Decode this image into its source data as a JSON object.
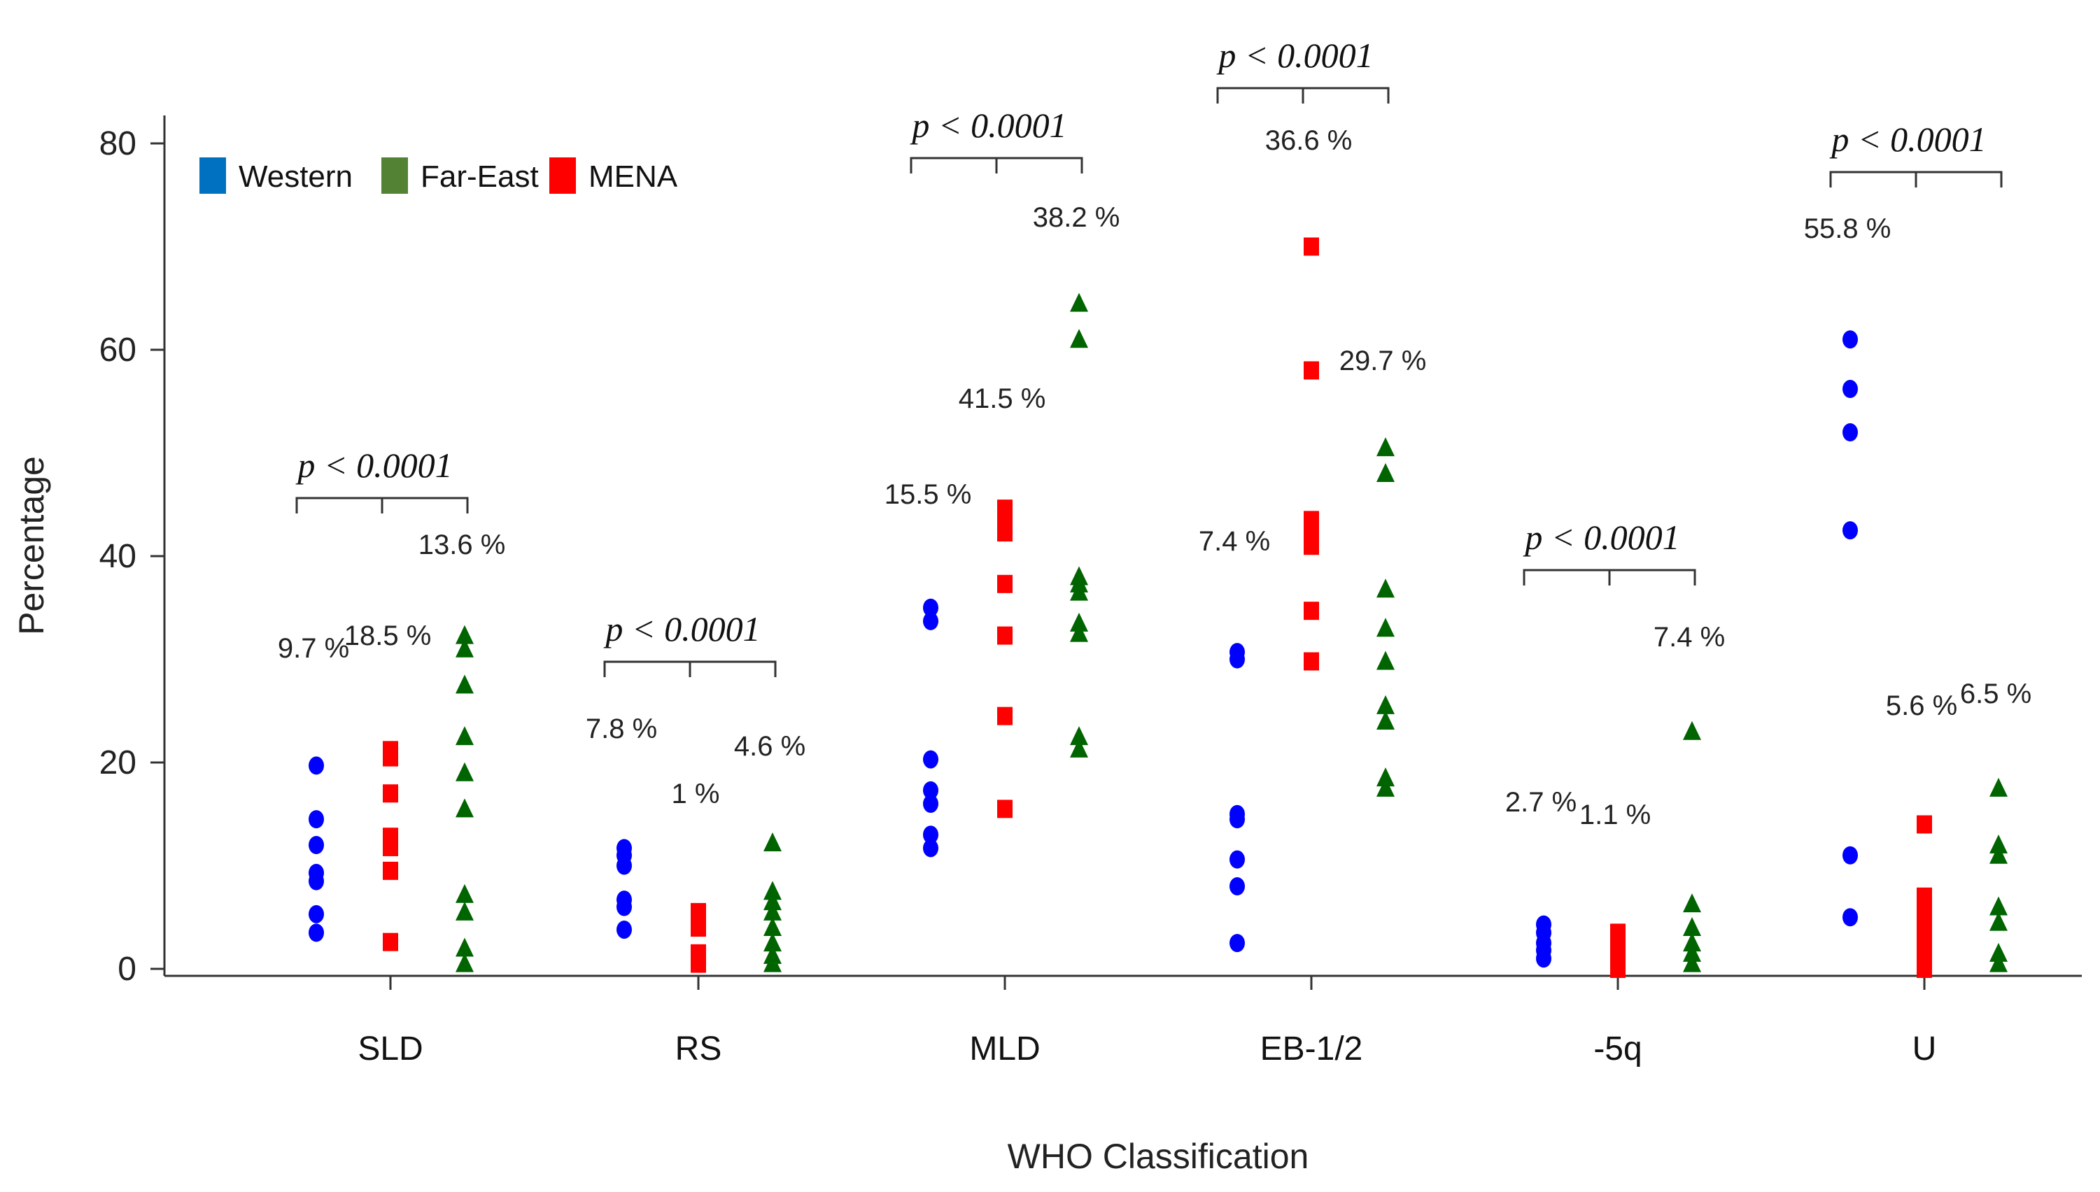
{
  "chart_data": {
    "type": "scatter",
    "title": "",
    "xlabel": "WHO Classification",
    "ylabel": "Percentage",
    "ylim": [
      0,
      80
    ],
    "yticks": [
      "0",
      "20",
      "40",
      "60",
      "80"
    ],
    "legend_position": "top-left",
    "categories": [
      "SLD",
      "RS",
      "MLD",
      "EB-1/2",
      "-5q",
      "U"
    ],
    "series": [
      {
        "name": "Western",
        "color": "#0000ff",
        "marker": "circle",
        "legend_color": "#0070c0",
        "values": [
          [
            3.5,
            5.3,
            8.5,
            9.3,
            12,
            14.5,
            19.7
          ],
          [
            3.8,
            6,
            6.7,
            10,
            11,
            11.7
          ],
          [
            11.7,
            13,
            16,
            17.3,
            20.3,
            33.7,
            35
          ],
          [
            2.5,
            8,
            10.6,
            14.5,
            15,
            30,
            30.7
          ],
          [
            1,
            1.8,
            2.5,
            3.5,
            4.3
          ],
          [
            5,
            11,
            42.5,
            52,
            56.2,
            61
          ]
        ]
      },
      {
        "name": "MENA",
        "color": "#ff0000",
        "marker": "square",
        "legend_color": "#ff0000",
        "values": [
          [
            2.6,
            9.5,
            11.8,
            12.8,
            17,
            20.5,
            21.2
          ],
          [
            0.5,
            1.5,
            4,
            5.5
          ],
          [
            15.5,
            24.5,
            32.3,
            37.3,
            42.3,
            43.6,
            44.6
          ],
          [
            29.8,
            34.7,
            41,
            42.3,
            43.5,
            58,
            70
          ],
          [
            0,
            1,
            2.2,
            3.5
          ],
          [
            0,
            1.5,
            3,
            4.5,
            6,
            7,
            14
          ]
        ]
      },
      {
        "name": "Far-East",
        "color": "#006400",
        "marker": "triangle",
        "legend_color": "#548235",
        "values": [
          [
            0.5,
            2,
            5.5,
            7.2,
            15.5,
            19,
            22.5,
            27.5,
            31,
            32.3
          ],
          [
            0.5,
            1.3,
            2.5,
            4,
            5.5,
            6.5,
            7.5,
            12.2
          ],
          [
            21.3,
            22.5,
            32.5,
            33.5,
            36.5,
            37.3,
            38,
            61,
            64.5
          ],
          [
            17.5,
            18.5,
            24,
            25.5,
            29.8,
            33,
            36.8,
            48,
            50.5
          ],
          [
            0.5,
            1.5,
            2.5,
            4,
            6.3,
            23
          ],
          [
            0.5,
            1.5,
            4.5,
            6,
            11,
            12,
            17.5
          ]
        ]
      }
    ],
    "group_percent_labels": [
      {
        "Western": "9.7 %",
        "MENA": "18.5 %",
        "Far-East": "13.6 %"
      },
      {
        "Western": "7.8 %",
        "MENA": "1 %",
        "Far-East": "4.6 %"
      },
      {
        "Western": "15.5 %",
        "MENA": "41.5 %",
        "Far-East": "38.2 %"
      },
      {
        "Western": "7.4 %",
        "MENA": "36.6 %",
        "Far-East": "29.7 %"
      },
      {
        "Western": "2.7 %",
        "MENA": "1.1 %",
        "Far-East": "7.4 %"
      },
      {
        "Western": "55.8 %",
        "MENA": "5.6 %",
        "Far-East": "6.5 %"
      }
    ],
    "p_values": [
      "p < 0.0001",
      "p < 0.0001",
      "p < 0.0001",
      "p < 0.0001",
      "p < 0.0001",
      "p < 0.0001"
    ]
  }
}
